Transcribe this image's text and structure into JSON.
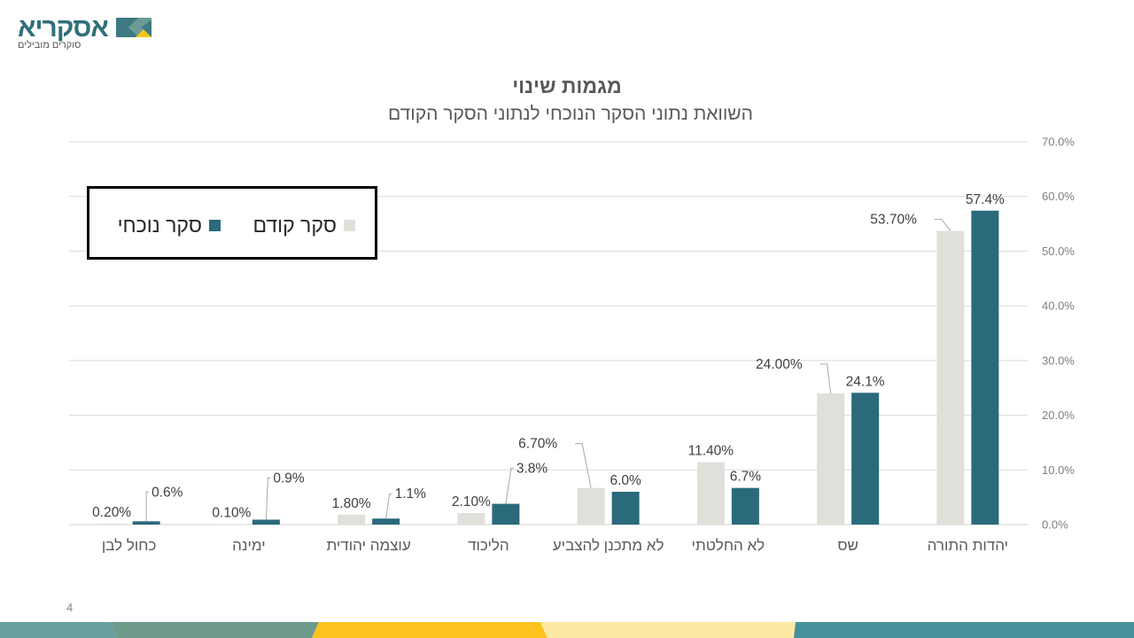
{
  "logo": {
    "name": "אסקריא",
    "tagline": "סוקרים מובילים",
    "colors": {
      "text": "#2f6f7a",
      "mark_dark": "#2f6f7a",
      "mark_light": "#6a9a93",
      "mark_accent": "#f5c518"
    }
  },
  "slide": {
    "title": "מגמות שינוי",
    "subtitle": "השוואת נתוני הסקר הנוכחי לנתוני הסקר הקודם",
    "page_number": "4"
  },
  "legend": {
    "items": [
      {
        "label": "סקר קודם",
        "color": "#e0dfda"
      },
      {
        "label": "סקר נוכחי",
        "color": "#2a6a7b"
      }
    ]
  },
  "footer": {
    "colors": [
      "#6a9fa0",
      "#6e9a8c",
      "#fbc31c",
      "#fde9a4",
      "#46919c"
    ]
  },
  "chart_data": {
    "type": "bar",
    "title": "מגמות שינוי",
    "subtitle": "השוואת נתוני הסקר הנוכחי לנתוני הסקר הקודם",
    "xlabel": "",
    "ylabel": "",
    "ylim": [
      0,
      70
    ],
    "y_axis_position": "right",
    "y_ticks": [
      "0.0%",
      "10.0%",
      "20.0%",
      "30.0%",
      "40.0%",
      "50.0%",
      "60.0%",
      "70.0%"
    ],
    "grid": true,
    "legend_position": "top-left (boxed)",
    "categories": [
      "יהדות התורה",
      "שס",
      "לא החלטתי",
      "לא מתכנן להצביע",
      "הליכוד",
      "עוצמה יהודית",
      "ימינה",
      "כחול לבן"
    ],
    "series": [
      {
        "name": "סקר קודם",
        "color": "#e0dfda",
        "values": [
          53.7,
          24.0,
          11.4,
          6.7,
          2.1,
          1.8,
          0.1,
          0.2
        ],
        "labels": [
          "53.70%",
          "24.00%",
          "11.40%",
          "6.70%",
          "2.10%",
          "1.80%",
          "0.10%",
          "0.20%"
        ]
      },
      {
        "name": "סקר נוכחי",
        "color": "#2a6a7b",
        "values": [
          57.4,
          24.1,
          6.7,
          6.0,
          3.8,
          1.1,
          0.9,
          0.6
        ],
        "labels": [
          "57.4%",
          "24.1%",
          "6.7%",
          "6.0%",
          "3.8%",
          "1.1%",
          "0.9%",
          "0.6%"
        ]
      }
    ]
  }
}
